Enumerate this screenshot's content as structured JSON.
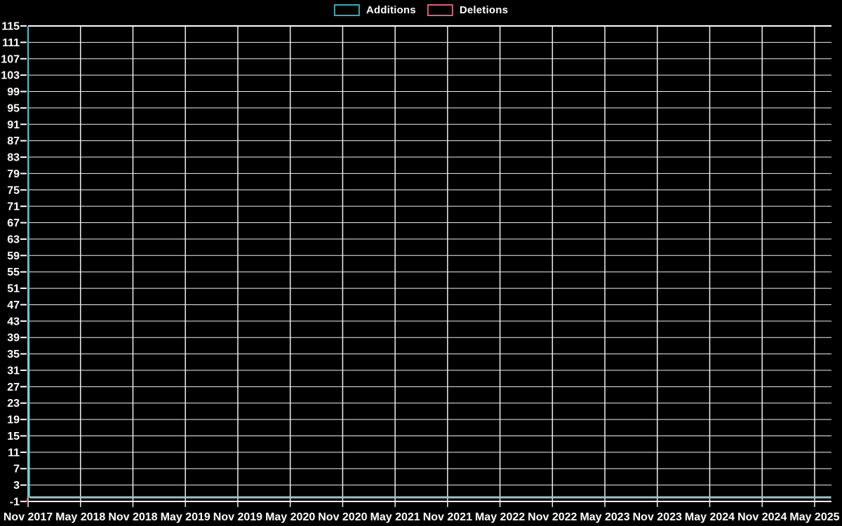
{
  "legend": {
    "items": [
      {
        "label": "Additions",
        "color": "#3fa9b2"
      },
      {
        "label": "Deletions",
        "color": "#dc5f7e"
      }
    ]
  },
  "chart_data": {
    "type": "line",
    "title": "",
    "xlabel": "",
    "ylabel": "",
    "background_color": "#000000",
    "grid": true,
    "grid_color": "#efefef",
    "tick_label_color": "#ffffff",
    "legend_position": "top-center",
    "x_tick_labels": [
      "Nov 2017",
      "May 2018",
      "Nov 2018",
      "May 2019",
      "Nov 2019",
      "May 2020",
      "Nov 2020",
      "May 2021",
      "Nov 2021",
      "May 2022",
      "Nov 2022",
      "May 2023",
      "Nov 2023",
      "May 2024",
      "Nov 2024",
      "May 2025"
    ],
    "x_tick_month_step": 6,
    "xlim_months": [
      0,
      91.9
    ],
    "y_ticks": [
      -1,
      3,
      7,
      11,
      15,
      19,
      23,
      27,
      31,
      35,
      39,
      43,
      47,
      51,
      55,
      59,
      63,
      67,
      71,
      75,
      79,
      83,
      87,
      91,
      95,
      99,
      103,
      107,
      111,
      115
    ],
    "ylim": [
      -1,
      115
    ],
    "series": [
      {
        "name": "Additions",
        "legend_color": "#3fa9b2",
        "description": "Spike of 115 additions at Nov 2017, then flat at 0 through mid-2025",
        "paths": [
          {
            "color": "#4cc6ce",
            "width": 2,
            "points_months": [
              [
                0,
                115
              ],
              [
                0.15,
                0
              ]
            ]
          },
          {
            "color": "#a6c0c6",
            "width": 3,
            "points_months": [
              [
                0.15,
                0
              ],
              [
                91.9,
                0
              ]
            ]
          }
        ]
      },
      {
        "name": "Deletions",
        "legend_color": "#dc5f7e",
        "description": "Small dip at Nov 2017 from 0 to -1 (baseline), flat 0 elsewhere (hidden behind Additions line)",
        "paths": [
          {
            "color": "#ef6380",
            "width": 2,
            "points_months": [
              [
                -0.08,
                -0.2
              ],
              [
                -0.08,
                -1
              ]
            ]
          }
        ]
      }
    ]
  }
}
